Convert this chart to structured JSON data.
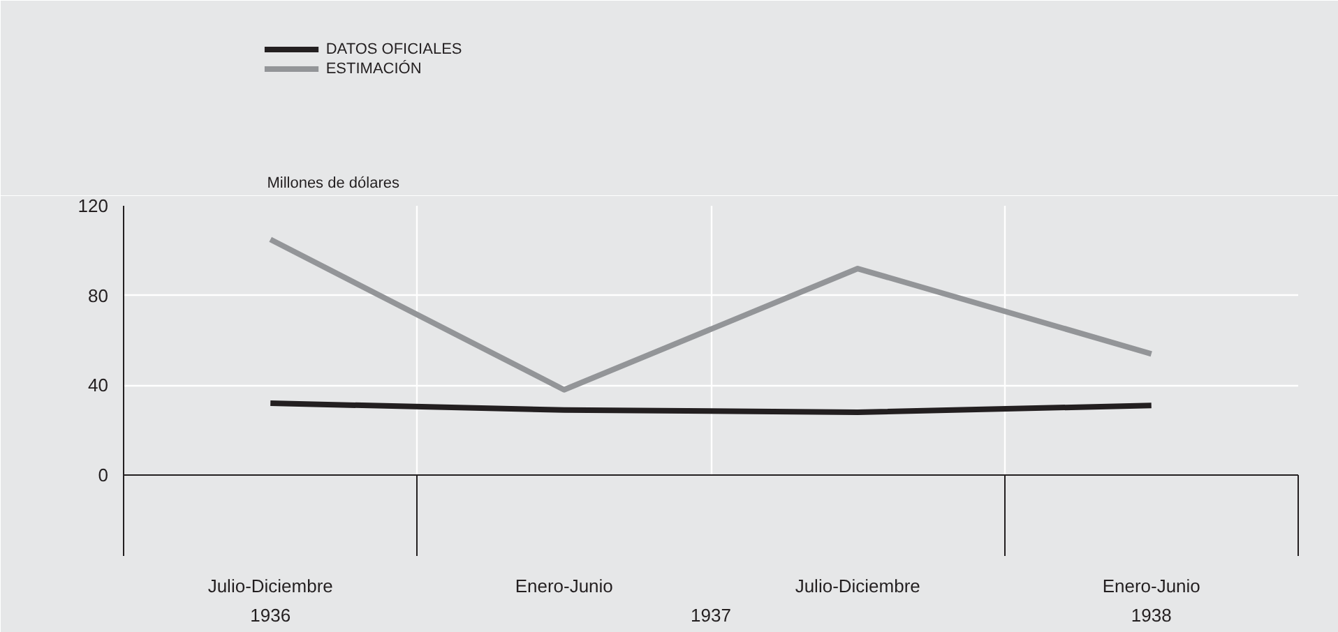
{
  "chart_data": {
    "type": "line",
    "ylabel": "Millones de dólares",
    "categories": [
      "Julio-Diciembre",
      "Enero-Junio",
      "Julio-Diciembre",
      "Enero-Junio"
    ],
    "series": [
      {
        "name": "DATOS OFICIALES",
        "color": "#231f20",
        "values": [
          32,
          29,
          28,
          31
        ]
      },
      {
        "name": "ESTIMACIÓN",
        "color": "#939598",
        "values": [
          105,
          38,
          92,
          54
        ]
      }
    ],
    "annotations": [
      "1936",
      "1937",
      "1938"
    ],
    "ylim": [
      0,
      120
    ],
    "yticks": [
      0,
      40,
      80,
      120
    ],
    "grid": true,
    "legend": "top left",
    "marker": "none",
    "line_style": "solid"
  }
}
